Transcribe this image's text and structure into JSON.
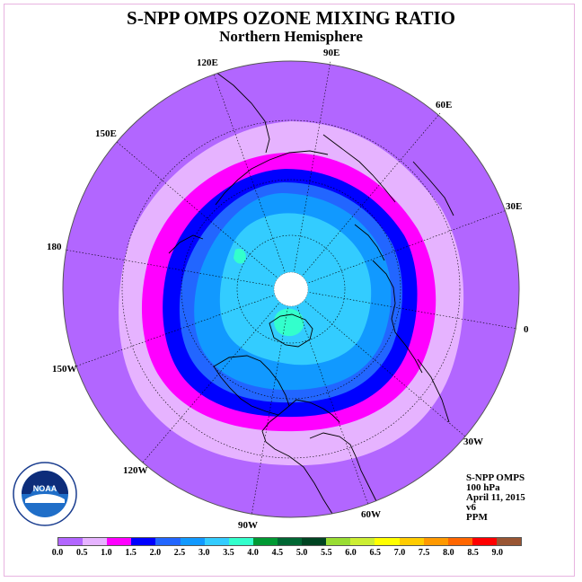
{
  "title": "S-NPP OMPS OZONE MIXING RATIO",
  "subtitle": "Northern Hemisphere",
  "longitude_labels": [
    "90E",
    "60E",
    "30E",
    "0",
    "30W",
    "60W",
    "90W",
    "120W",
    "150W",
    "180",
    "150E",
    "120E"
  ],
  "info": {
    "instrument": "S-NPP OMPS",
    "level": "100 hPa",
    "date": "April 11, 2015",
    "version": "v6",
    "units": "PPM"
  },
  "logo": {
    "name": "noaa-logo",
    "text": "NOAA"
  },
  "colorbar": {
    "colors": [
      "#b266ff",
      "#e6b3ff",
      "#ff00ff",
      "#0000ff",
      "#2266ff",
      "#1199ff",
      "#33ccff",
      "#33ffcc",
      "#009933",
      "#006633",
      "#004422",
      "#99dd33",
      "#ccee33",
      "#ffff00",
      "#ffcc00",
      "#ff9900",
      "#ff6600",
      "#ff0000",
      "#995533"
    ],
    "labels": [
      "0.0",
      "0.5",
      "1.0",
      "1.5",
      "2.0",
      "2.5",
      "3.0",
      "3.5",
      "4.0",
      "4.5",
      "5.0",
      "5.5",
      "6.0",
      "6.5",
      "7.0",
      "7.5",
      "8.0",
      "8.5",
      "9.0"
    ]
  }
}
